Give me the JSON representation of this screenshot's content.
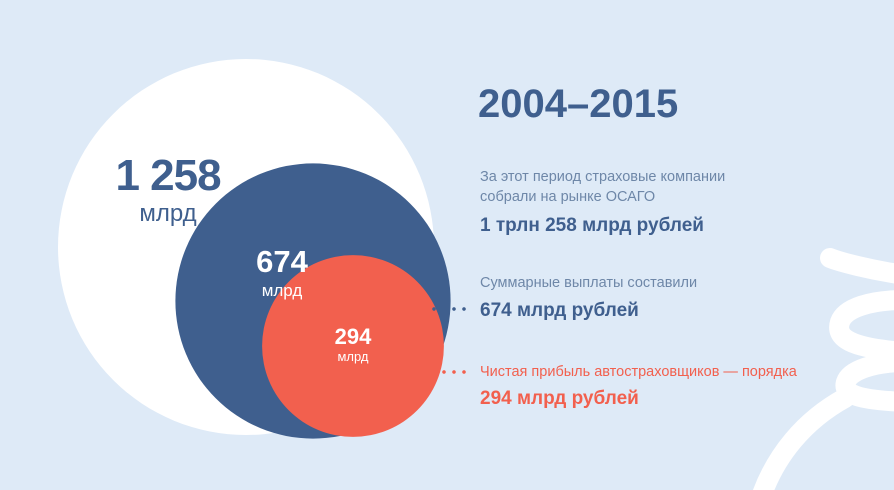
{
  "colors": {
    "background": "#deeaf7",
    "outer_circle": "#ffffff",
    "middle_circle": "#3f5f8e",
    "inner_circle": "#f2604e",
    "text_blue": "#3f5f8e",
    "text_muted": "#6e87a8",
    "accent_red": "#f2604e"
  },
  "icons": {
    "background_decoration": "money-bag-icon"
  },
  "chart_data": {
    "type": "nested-circles",
    "title": "2004–2015",
    "unit": "млрд",
    "values": [
      {
        "value": 1258,
        "label": "1 258",
        "unit": "млрд"
      },
      {
        "value": 674,
        "label": "674",
        "unit": "млрд"
      },
      {
        "value": 294,
        "label": "294",
        "unit": "млрд"
      }
    ]
  },
  "legend": {
    "collected": {
      "line1": "За этот период страховые компании",
      "line2": "собрали на рынке ОСАГО",
      "amount": "1 трлн 258 млрд рублей"
    },
    "payouts": {
      "line1": "Суммарные выплаты составили",
      "amount": "674 млрд рублей"
    },
    "profit": {
      "line1": "Чистая прибыль автостраховщиков — порядка",
      "amount": "294 млрд рублей"
    }
  }
}
